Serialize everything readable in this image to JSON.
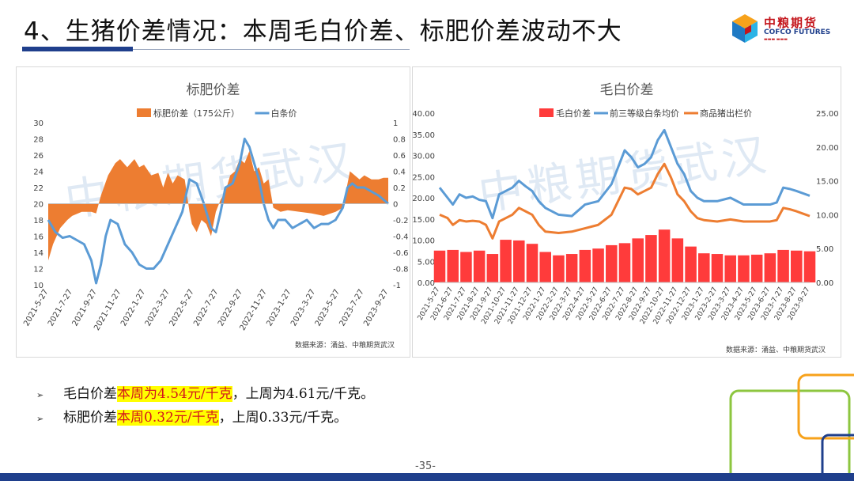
{
  "header": {
    "title": "4、生猪价差情况：本周毛白价差、标肥价差波动不大",
    "logo_cn": "中粮期货",
    "logo_en": "COFCO FUTURES"
  },
  "watermark": "中粮期货武汉",
  "chart_data": [
    {
      "type": "bar",
      "title": "标肥价差",
      "legend_position": "top",
      "source_note": "数据来源：涌益、中粮期货武汉",
      "x_tick_labels": [
        "2021-5-27",
        "2021-7-27",
        "2021-9-27",
        "2021-11-27",
        "2022-1-27",
        "2022-3-27",
        "2022-5-27",
        "2022-7-27",
        "2022-9-27",
        "2022-11-27",
        "2023-1-27",
        "2023-3-27",
        "2023-5-27",
        "2023-7-27",
        "2023-9-27"
      ],
      "y_left": {
        "min": 10,
        "max": 30,
        "ticks": [
          "10",
          "12",
          "14",
          "16",
          "18",
          "20",
          "22",
          "24",
          "26",
          "28",
          "30"
        ]
      },
      "y_right": {
        "min": -1,
        "max": 1,
        "ticks": [
          "-1",
          "-0.8",
          "-0.6",
          "-0.4",
          "-0.2",
          "0",
          "0.2",
          "0.4",
          "0.6",
          "0.8",
          "1"
        ]
      },
      "series": [
        {
          "name": "标肥价差（175公斤）",
          "kind": "area",
          "axis": "right",
          "color": "#ed7d31",
          "x": [
            0,
            0.2,
            0.5,
            0.8,
            1,
            1.4,
            1.8,
            2,
            2.2,
            2.5,
            2.8,
            3,
            3.3,
            3.6,
            3.8,
            4,
            4.3,
            4.6,
            4.8,
            5,
            5.2,
            5.4,
            5.7,
            5.9,
            6,
            6.2,
            6.4,
            6.6,
            6.8,
            7,
            7.2,
            7.4,
            7.6,
            7.8,
            8,
            8.2,
            8.4,
            8.6,
            8.8,
            9,
            9.2,
            9.4,
            9.7,
            10,
            10.5,
            11,
            11.5,
            12,
            12.3,
            12.6,
            12.8,
            13,
            13.2,
            13.5,
            13.8,
            14,
            14.2
          ],
          "values": [
            -0.7,
            -0.5,
            -0.3,
            -0.2,
            -0.15,
            -0.1,
            -0.1,
            -0.12,
            0.1,
            0.35,
            0.5,
            0.55,
            0.45,
            0.55,
            0.45,
            0.48,
            0.35,
            0.38,
            0.2,
            0.38,
            0.25,
            0.35,
            0.3,
            -0.1,
            -0.25,
            -0.35,
            -0.2,
            -0.25,
            -0.4,
            -0.1,
            0.05,
            0.15,
            0.35,
            0.4,
            0.55,
            0.5,
            0.65,
            0.4,
            0.45,
            0.25,
            0.3,
            -0.05,
            -0.1,
            -0.08,
            -0.1,
            -0.12,
            -0.15,
            -0.1,
            -0.05,
            0.4,
            0.35,
            0.3,
            0.35,
            0.3,
            0.3,
            0.32,
            0.32
          ]
        },
        {
          "name": "白条价",
          "kind": "line",
          "axis": "left",
          "color": "#5b9bd5",
          "x": [
            0,
            0.3,
            0.6,
            0.9,
            1.2,
            1.5,
            1.8,
            2,
            2.2,
            2.4,
            2.6,
            2.9,
            3.2,
            3.5,
            3.8,
            4.1,
            4.4,
            4.7,
            5,
            5.3,
            5.6,
            5.9,
            6.2,
            6.5,
            6.8,
            7,
            7.2,
            7.4,
            7.7,
            8,
            8.2,
            8.4,
            8.6,
            8.8,
            9,
            9.2,
            9.4,
            9.6,
            9.9,
            10.2,
            10.5,
            10.8,
            11.1,
            11.4,
            11.7,
            12,
            12.3,
            12.5,
            12.7,
            12.9,
            13.2,
            13.5,
            13.8,
            14,
            14.2
          ],
          "values": [
            18,
            16.5,
            15.8,
            16,
            15.5,
            15,
            13,
            10.2,
            12.5,
            16,
            18,
            17.5,
            15,
            14,
            12.5,
            12,
            12,
            13,
            15,
            17,
            19,
            23,
            22.5,
            20,
            17,
            16.5,
            19,
            22,
            22.5,
            25,
            28,
            27,
            25,
            23,
            20,
            18,
            17,
            18,
            18,
            17,
            17.5,
            18,
            17,
            17.5,
            17.5,
            18,
            19.5,
            22,
            22.5,
            22,
            22,
            21.5,
            21,
            20.5,
            20
          ]
        }
      ]
    },
    {
      "type": "bar",
      "title": "毛白价差",
      "legend_position": "top",
      "source_note": "数据来源：涌益、中粮期货武汉",
      "x_tick_labels": [
        "2021-5-27",
        "2021-6-27",
        "2021-7-27",
        "2021-8-27",
        "2021-9-27",
        "2021-10-27",
        "2021-11-27",
        "2021-12-27",
        "2022-1-27",
        "2022-2-27",
        "2022-3-27",
        "2022-4-27",
        "2022-5-27",
        "2022-6-27",
        "2022-7-27",
        "2022-8-27",
        "2022-9-27",
        "2022-10-27",
        "2022-11-27",
        "2022-12-27",
        "2023-1-27",
        "2023-2-27",
        "2023-3-27",
        "2023-4-27",
        "2023-5-27",
        "2023-6-27",
        "2023-7-27",
        "2023-8-27",
        "2023-9-27"
      ],
      "y_left": {
        "min": 0,
        "max": 40,
        "ticks": [
          "0.00",
          "5.00",
          "10.00",
          "15.00",
          "20.00",
          "25.00",
          "30.00",
          "35.00",
          "40.00"
        ]
      },
      "y_right": {
        "min": 0,
        "max": 25,
        "ticks": [
          "0.00",
          "5.00",
          "10.00",
          "15.00",
          "20.00",
          "25.00"
        ]
      },
      "series": [
        {
          "name": "毛白价差",
          "kind": "bar",
          "axis": "right",
          "color": "#ff3b3b",
          "x": [
            0,
            1,
            2,
            3,
            4,
            5,
            6,
            7,
            8,
            9,
            10,
            11,
            12,
            13,
            14,
            15,
            16,
            17,
            18,
            19,
            20,
            21,
            22,
            23,
            24,
            25,
            26,
            27,
            28
          ],
          "values": [
            4.7,
            4.8,
            4.5,
            4.7,
            4.2,
            6.3,
            6.2,
            5.7,
            4.5,
            4.0,
            4.2,
            4.8,
            5.0,
            5.5,
            5.8,
            6.5,
            7.0,
            7.8,
            6.5,
            5.3,
            4.3,
            4.2,
            4.0,
            4.0,
            4.1,
            4.3,
            4.8,
            4.7,
            4.6
          ]
        },
        {
          "name": "前三等级白条均价",
          "kind": "line",
          "axis": "right",
          "color": "#5b9bd5",
          "x": [
            0,
            0.6,
            1,
            1.5,
            2,
            2.5,
            3,
            3.5,
            4,
            4.5,
            5,
            5.5,
            6,
            6.5,
            7,
            7.5,
            8,
            9,
            10,
            11,
            12,
            13,
            14,
            14.5,
            15,
            15.5,
            16,
            16.5,
            17,
            17.5,
            18,
            18.5,
            19,
            19.5,
            20,
            21,
            22,
            23,
            24,
            25,
            25.5,
            26,
            26.5,
            27,
            28
          ],
          "values": [
            14,
            12.5,
            11.5,
            13,
            12.5,
            12.7,
            12.2,
            12,
            9.5,
            13,
            13.5,
            14,
            15,
            14.2,
            13.5,
            12,
            11,
            10,
            9.8,
            11.5,
            12,
            14.5,
            19.5,
            18.5,
            17,
            17.5,
            18.5,
            21,
            22.5,
            20,
            17.5,
            16,
            13.5,
            12.5,
            12,
            12,
            12.5,
            11.5,
            11.5,
            11.5,
            11.8,
            14,
            13.8,
            13.5,
            12.8
          ]
        },
        {
          "name": "商品猪出栏价",
          "kind": "line",
          "axis": "right",
          "color": "#ed7d31",
          "x": [
            0,
            0.6,
            1,
            1.5,
            2,
            2.5,
            3,
            3.5,
            4,
            4.5,
            5,
            5.5,
            6,
            6.5,
            7,
            7.5,
            8,
            9,
            10,
            11,
            12,
            13,
            14,
            14.5,
            15,
            15.5,
            16,
            16.5,
            17,
            17.5,
            18,
            18.5,
            19,
            19.5,
            20,
            21,
            22,
            23,
            24,
            25,
            25.5,
            26,
            26.5,
            27,
            28
          ],
          "values": [
            10,
            9.5,
            8.5,
            9.2,
            9,
            9.1,
            9,
            8.5,
            6.5,
            9,
            9.5,
            10,
            11,
            10.5,
            10,
            8.5,
            7.5,
            7.3,
            7.5,
            8,
            8.5,
            10,
            14,
            13.8,
            13,
            13.5,
            14,
            16,
            17.5,
            15.5,
            13,
            12,
            10.5,
            9.5,
            9.2,
            9,
            9.3,
            9,
            9,
            9,
            9.2,
            11,
            10.8,
            10.5,
            9.8
          ]
        }
      ]
    }
  ],
  "bullets": [
    {
      "prefix": "毛白价差",
      "highlight": "本周为4.54元/千克",
      "suffix": "，上周为4.61元/千克。"
    },
    {
      "prefix": "标肥价差",
      "highlight": "本周0.32元/千克",
      "suffix": "，上周0.33元/千克。"
    }
  ],
  "footer": {
    "page": "-35-"
  },
  "colors": {
    "brand_blue": "#1f3f8c",
    "highlight": "#ffff00",
    "highlight_text": "#d4161c"
  }
}
